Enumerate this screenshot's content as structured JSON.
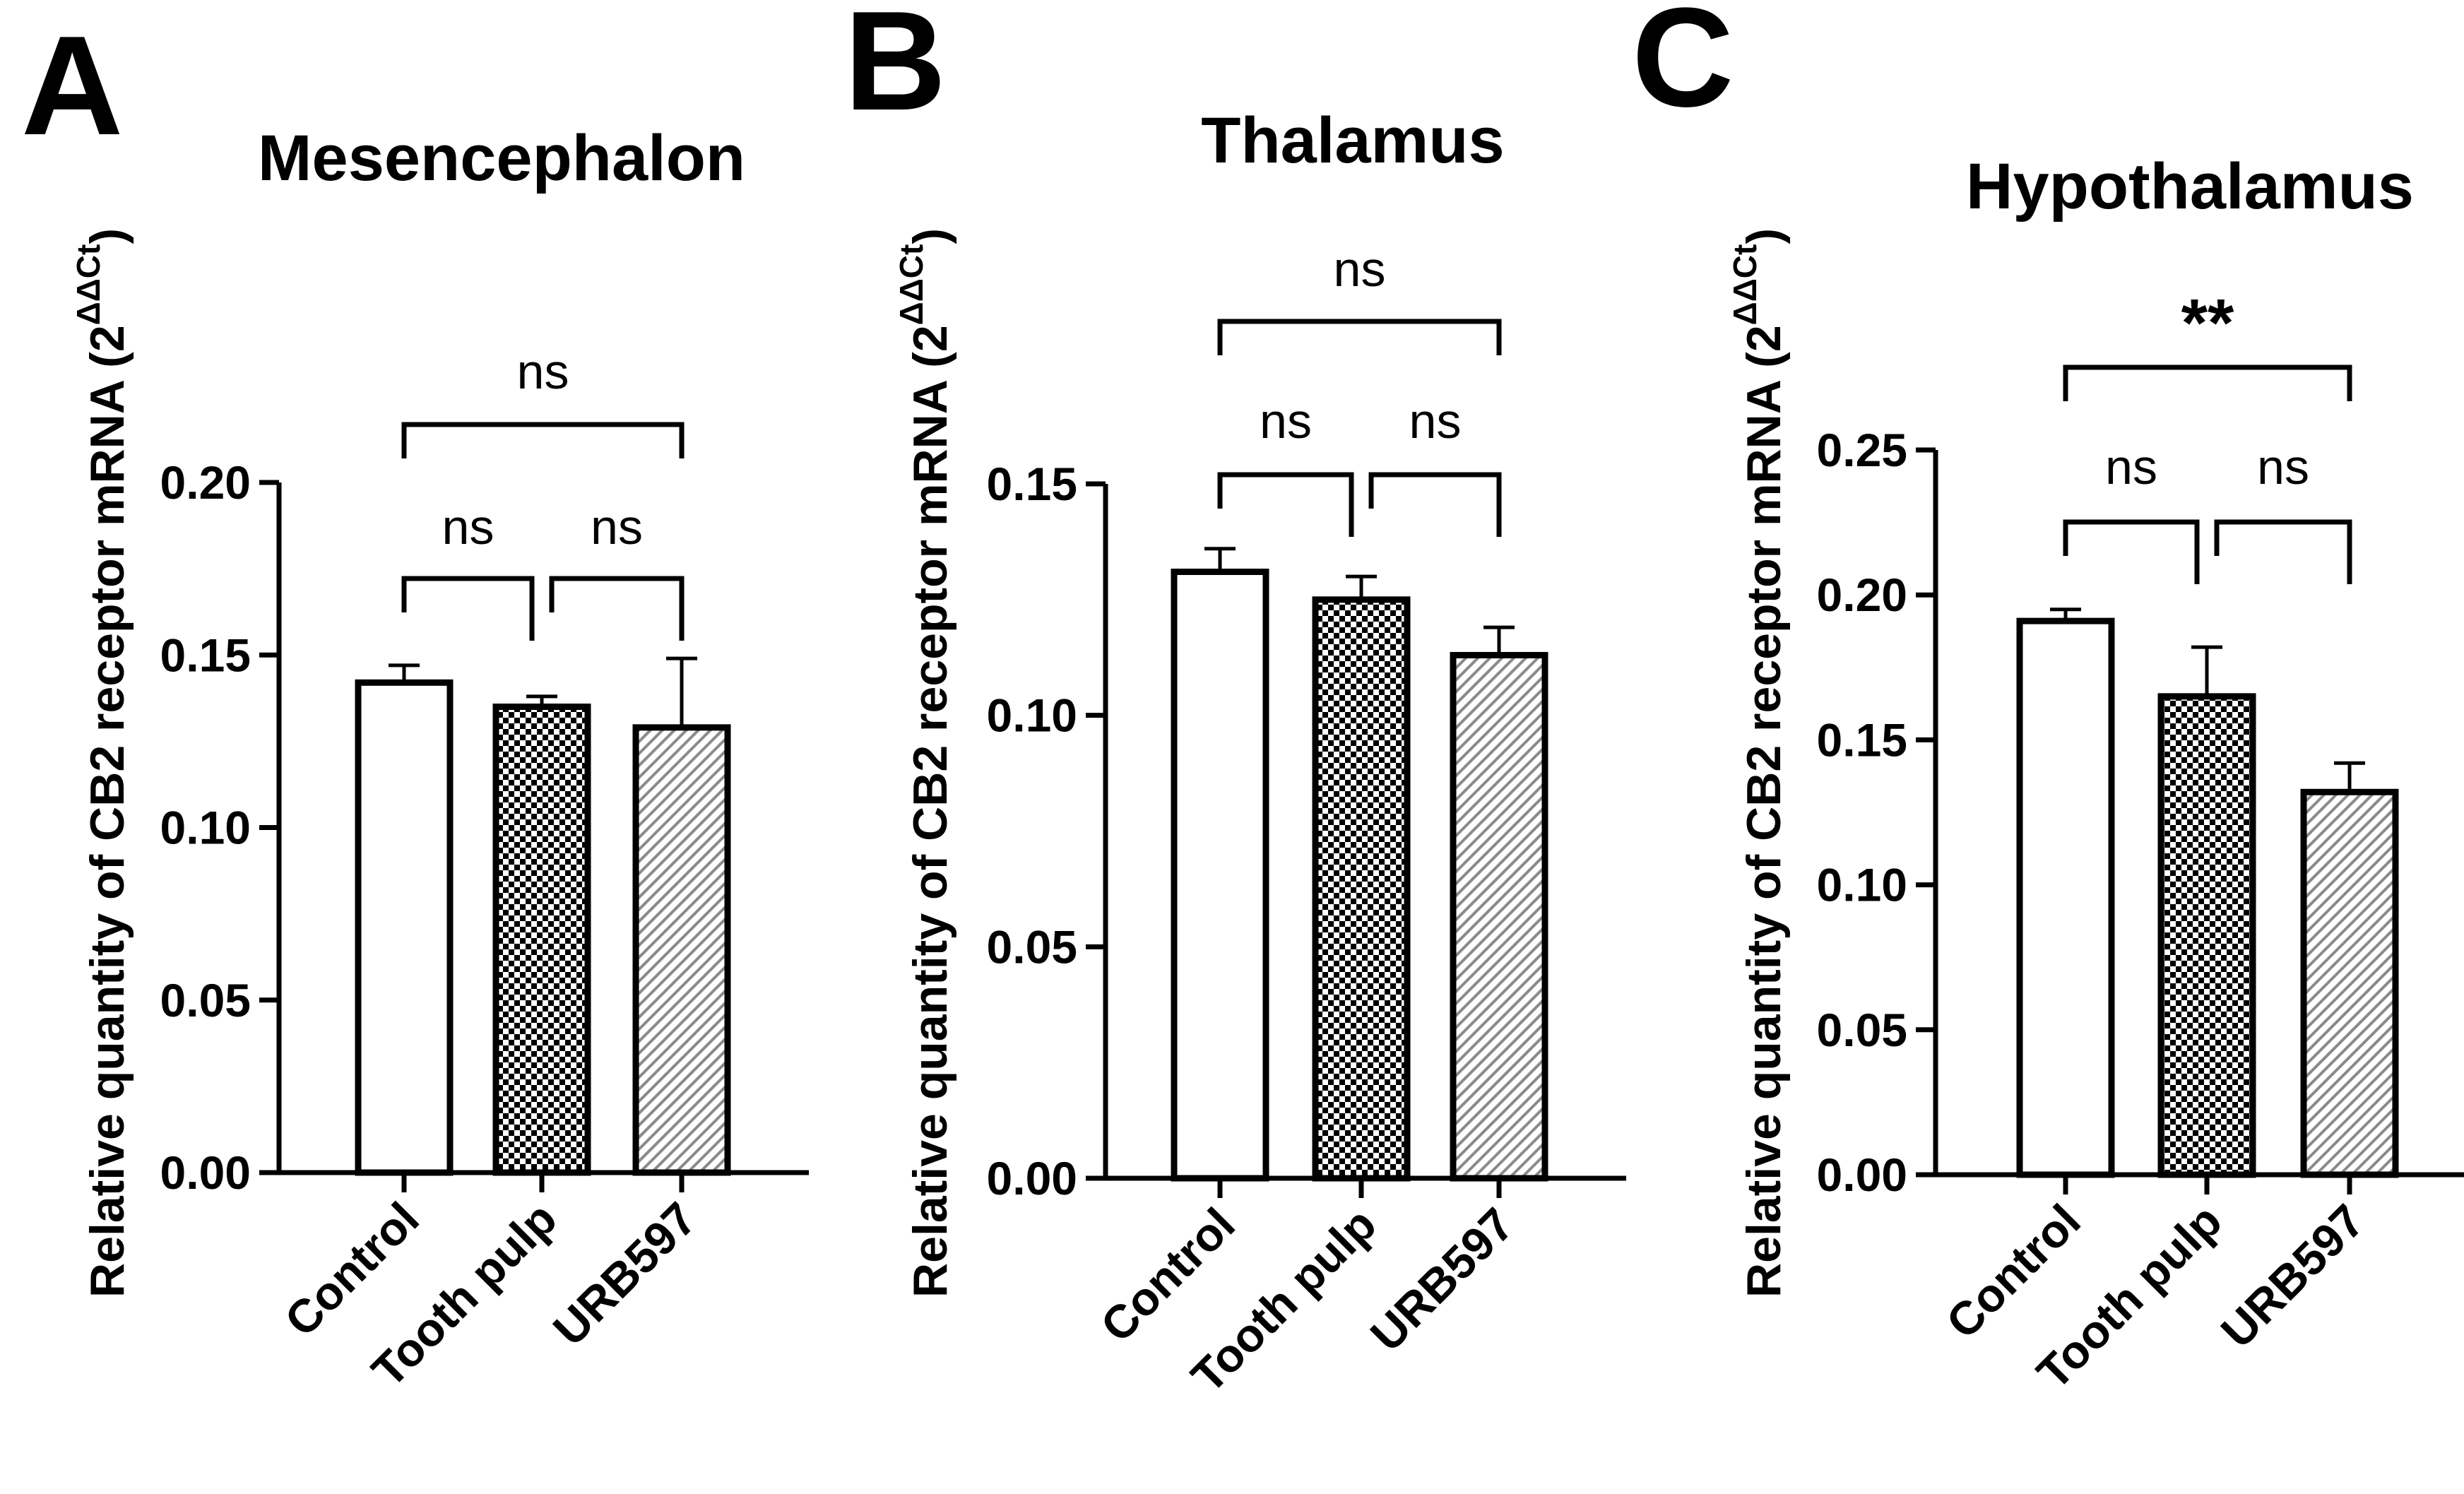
{
  "figure": {
    "panels": [
      {
        "letter": "A",
        "title": "Mesencephalon",
        "ylabel": "Relative quantity of CB2 receptor mRNA (2",
        "ylabel_sup": "ΔΔCt",
        "ylabel_close": ")"
      },
      {
        "letter": "B",
        "title": "Thalamus",
        "ylabel": "Relative quantity of CB2 receptor mRNA (2",
        "ylabel_sup": "ΔΔCt",
        "ylabel_close": ")"
      },
      {
        "letter": "C",
        "title": "Hypothalamus",
        "ylabel": "Relative quantity of CB2 receptor mRNA (2",
        "ylabel_sup": "ΔΔCt",
        "ylabel_close": ")"
      }
    ]
  },
  "colors": {
    "ink": "#000000",
    "background": "#ffffff",
    "hatch_fill": "#c8c8c8"
  },
  "chart_data": [
    {
      "type": "bar",
      "title": "Mesencephalon",
      "categories": [
        "Control",
        "Tooth pulp",
        "URB597"
      ],
      "values": [
        0.142,
        0.135,
        0.129
      ],
      "errors": [
        0.005,
        0.003,
        0.02
      ],
      "patterns": [
        "open",
        "checkerboard",
        "diagonal-hatch"
      ],
      "ylim": [
        0,
        0.2
      ],
      "yticks": [
        "0.00",
        "0.05",
        "0.10",
        "0.15",
        "0.20"
      ],
      "ylabel": "Relative quantity of CB2 receptor mRNA (2ΔΔCt)",
      "comparisons": [
        {
          "from": 0,
          "to": 1,
          "label": "ns"
        },
        {
          "from": 1,
          "to": 2,
          "label": "ns"
        },
        {
          "from": 0,
          "to": 2,
          "label": "ns"
        }
      ]
    },
    {
      "type": "bar",
      "title": "Thalamus",
      "categories": [
        "Control",
        "Tooth pulp",
        "URB597"
      ],
      "values": [
        0.131,
        0.125,
        0.113
      ],
      "errors": [
        0.005,
        0.005,
        0.006
      ],
      "patterns": [
        "open",
        "checkerboard",
        "diagonal-hatch"
      ],
      "ylim": [
        0,
        0.15
      ],
      "yticks": [
        "0.00",
        "0.05",
        "0.10",
        "0.15"
      ],
      "ylabel": "Relative quantity of CB2 receptor mRNA (2ΔΔCt)",
      "comparisons": [
        {
          "from": 0,
          "to": 1,
          "label": "ns"
        },
        {
          "from": 1,
          "to": 2,
          "label": "ns"
        },
        {
          "from": 0,
          "to": 2,
          "label": "ns"
        }
      ]
    },
    {
      "type": "bar",
      "title": "Hypothalamus",
      "categories": [
        "Control",
        "Tooth pulp",
        "URB597"
      ],
      "values": [
        0.191,
        0.165,
        0.132
      ],
      "errors": [
        0.004,
        0.017,
        0.01
      ],
      "patterns": [
        "open",
        "checkerboard",
        "diagonal-hatch"
      ],
      "ylim": [
        0,
        0.25
      ],
      "yticks": [
        "0.00",
        "0.05",
        "0.10",
        "0.15",
        "0.20",
        "0.25"
      ],
      "ylabel": "Relative quantity of CB2 receptor mRNA (2ΔΔCt)",
      "comparisons": [
        {
          "from": 0,
          "to": 1,
          "label": "ns"
        },
        {
          "from": 1,
          "to": 2,
          "label": "ns"
        },
        {
          "from": 0,
          "to": 2,
          "label": "**"
        }
      ]
    }
  ]
}
